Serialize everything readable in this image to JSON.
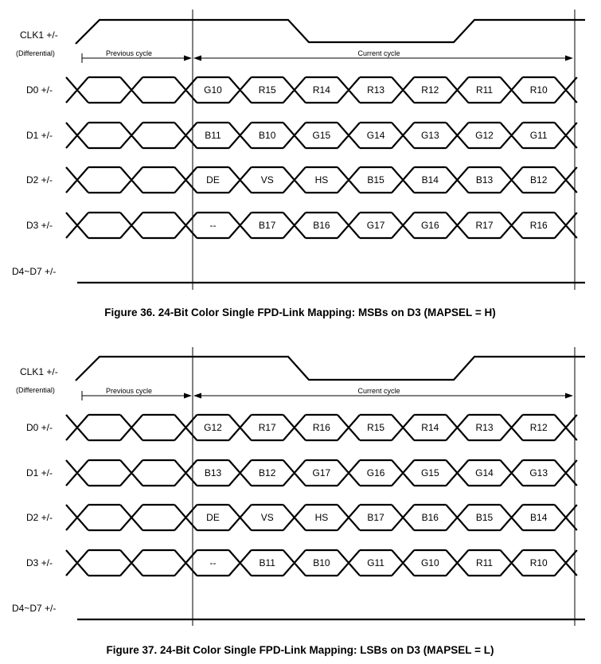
{
  "figures": [
    {
      "caption": "Figure 36.  24-Bit Color Single FPD-Link Mapping: MSBs on D3 (MAPSEL = H)",
      "clock": {
        "label": "CLK1 +/-",
        "sublabel": "(Differential)"
      },
      "previous_cycle_label": "Previous cycle",
      "current_cycle_label": "Current cycle",
      "lanes": [
        {
          "label": "D0 +/-",
          "bits": [
            "G10",
            "R15",
            "R14",
            "R13",
            "R12",
            "R11",
            "R10"
          ]
        },
        {
          "label": "D1 +/-",
          "bits": [
            "B11",
            "B10",
            "G15",
            "G14",
            "G13",
            "G12",
            "G11"
          ]
        },
        {
          "label": "D2 +/-",
          "bits": [
            "DE",
            "VS",
            "HS",
            "B15",
            "B14",
            "B13",
            "B12"
          ]
        },
        {
          "label": "D3 +/-",
          "bits": [
            "--",
            "B17",
            "B16",
            "G17",
            "G16",
            "R17",
            "R16"
          ]
        }
      ],
      "idle_lane": {
        "label": "D4~D7 +/-"
      }
    },
    {
      "caption": "Figure 37.  24-Bit Color Single FPD-Link Mapping: LSBs on D3 (MAPSEL = L)",
      "clock": {
        "label": "CLK1 +/-",
        "sublabel": "(Differential)"
      },
      "previous_cycle_label": "Previous cycle",
      "current_cycle_label": "Current cycle",
      "lanes": [
        {
          "label": "D0 +/-",
          "bits": [
            "G12",
            "R17",
            "R16",
            "R15",
            "R14",
            "R13",
            "R12"
          ]
        },
        {
          "label": "D1 +/-",
          "bits": [
            "B13",
            "B12",
            "G17",
            "G16",
            "G15",
            "G14",
            "G13"
          ]
        },
        {
          "label": "D2 +/-",
          "bits": [
            "DE",
            "VS",
            "HS",
            "B17",
            "B16",
            "B15",
            "B14"
          ]
        },
        {
          "label": "D3 +/-",
          "bits": [
            "--",
            "B11",
            "B10",
            "G11",
            "G10",
            "R11",
            "R10"
          ]
        }
      ],
      "idle_lane": {
        "label": "D4~D7 +/-"
      }
    }
  ]
}
